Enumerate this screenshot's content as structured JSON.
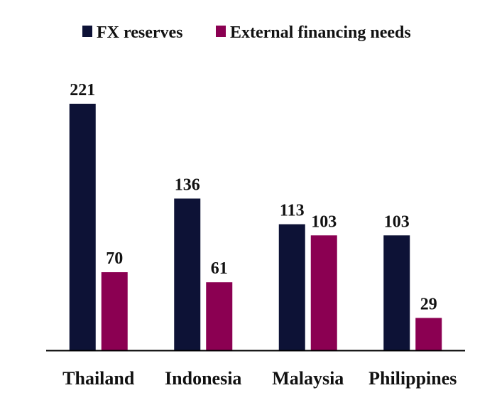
{
  "chart_data": {
    "type": "bar",
    "categories": [
      "Thailand",
      "Indonesia",
      "Malaysia",
      "Philippines"
    ],
    "series": [
      {
        "name": "FX reserves",
        "values": [
          221,
          136,
          113,
          103
        ],
        "color": "#0d1236"
      },
      {
        "name": "External financing needs",
        "values": [
          70,
          61,
          103,
          29
        ],
        "color": "#8b0052"
      }
    ],
    "title": "",
    "xlabel": "",
    "ylabel": "",
    "ylim": [
      0,
      221
    ],
    "grid": false,
    "legend_position": "top-center",
    "axis_color": "#000000"
  }
}
